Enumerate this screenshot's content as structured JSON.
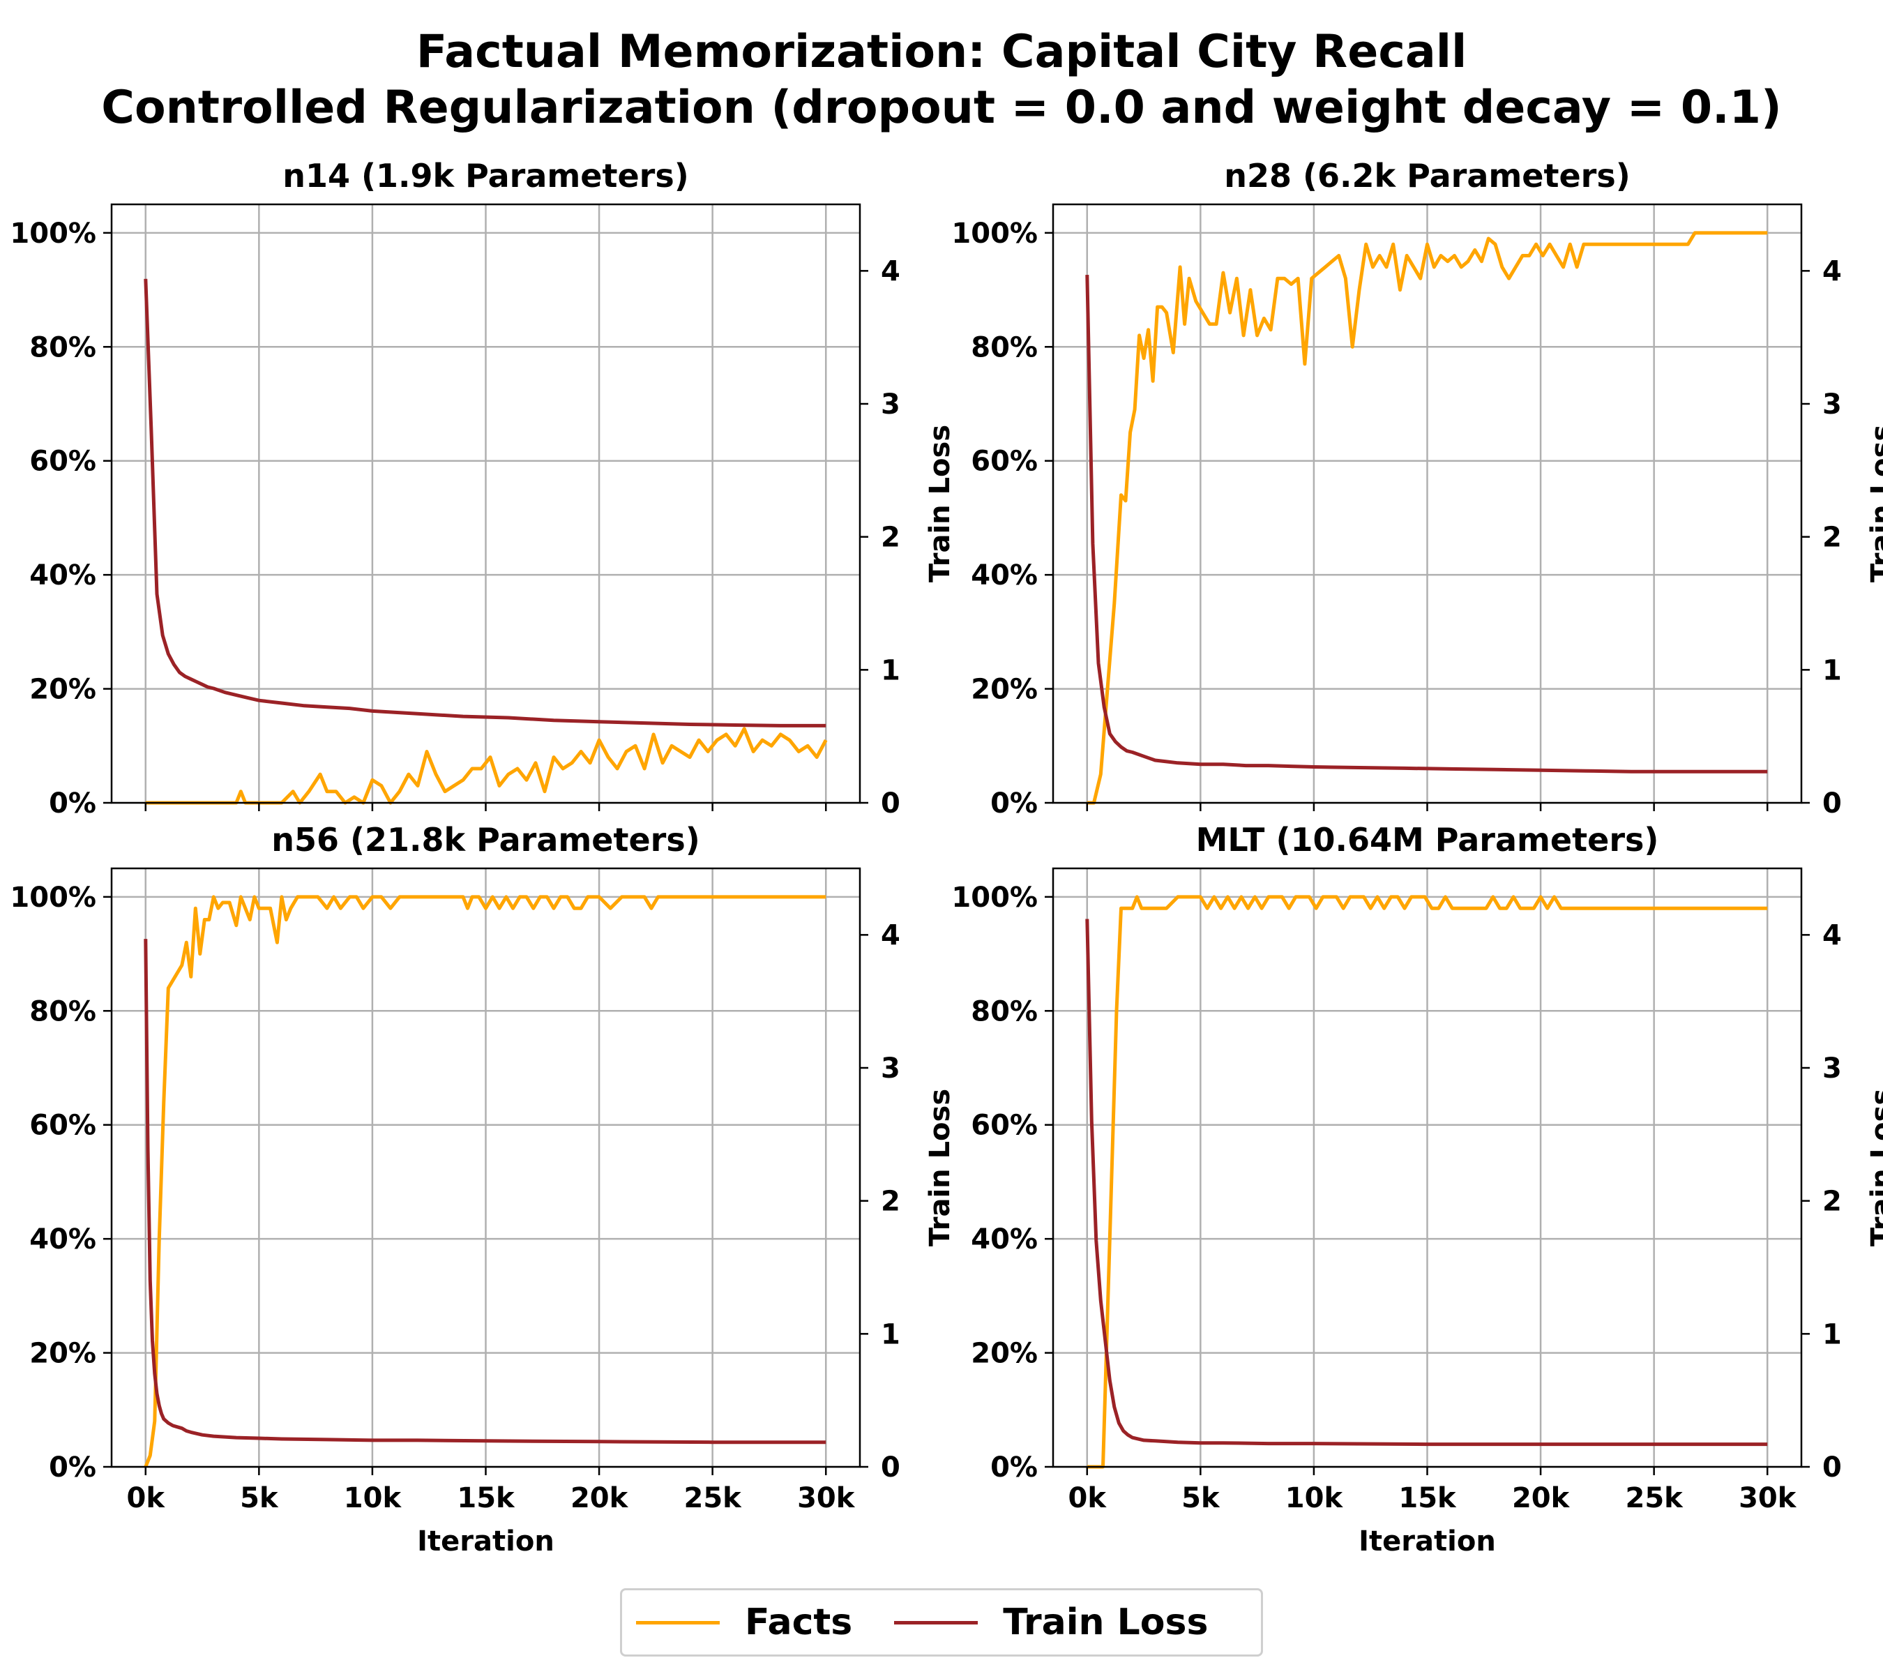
{
  "title_lines": [
    "Factual Memorization: Capital City Recall",
    "Controlled Regularization (dropout = 0.0 and weight decay = 0.1)"
  ],
  "colors": {
    "facts": "#FFA500",
    "loss": "#9B2226",
    "grid": "#b0b0b0"
  },
  "legend": {
    "facts_label": "Facts",
    "loss_label": "Train Loss"
  },
  "chart_data": [
    {
      "type": "line",
      "title": "n14 (1.9k Parameters)",
      "xlabel": "",
      "ylabel_left": "",
      "ylabel_right": "Train Loss",
      "xlim": [
        -1500,
        31500
      ],
      "ylim_left": [
        0,
        105
      ],
      "ylim_right": [
        0,
        4.5
      ],
      "x_ticks": [
        0,
        5000,
        10000,
        15000,
        20000,
        25000,
        30000
      ],
      "x_tick_labels": [],
      "y_left_ticks": [
        0,
        20,
        40,
        60,
        80,
        100
      ],
      "y_left_tick_labels": [
        "0%",
        "20%",
        "40%",
        "60%",
        "80%",
        "100%"
      ],
      "y_right_ticks": [
        0,
        1,
        2,
        3,
        4
      ],
      "y_right_tick_labels": [
        "0",
        "1",
        "2",
        "3",
        "4"
      ],
      "grid": true,
      "series": [
        {
          "name": "Facts",
          "axis": "left",
          "x": [
            0,
            2000,
            4000,
            4200,
            4400,
            6000,
            6500,
            6800,
            7200,
            7700,
            8000,
            8400,
            8800,
            9200,
            9600,
            10000,
            10400,
            10800,
            11200,
            11600,
            12000,
            12400,
            12800,
            13200,
            13600,
            14000,
            14400,
            14800,
            15200,
            15600,
            16000,
            16400,
            16800,
            17200,
            17600,
            18000,
            18400,
            18800,
            19200,
            19600,
            20000,
            20400,
            20800,
            21200,
            21600,
            22000,
            22400,
            22800,
            23200,
            23600,
            24000,
            24400,
            24800,
            25200,
            25600,
            26000,
            26400,
            26800,
            27200,
            27600,
            28000,
            28400,
            28800,
            29200,
            29600,
            30000
          ],
          "y": [
            0,
            0,
            0,
            2,
            0,
            0,
            2,
            0,
            2,
            5,
            2,
            2,
            0,
            1,
            0,
            4,
            3,
            0,
            2,
            5,
            3,
            9,
            5,
            2,
            3,
            4,
            6,
            6,
            8,
            3,
            5,
            6,
            4,
            7,
            2,
            8,
            6,
            7,
            9,
            7,
            11,
            8,
            6,
            9,
            10,
            6,
            12,
            7,
            10,
            9,
            8,
            11,
            9,
            11,
            12,
            10,
            13,
            9,
            11,
            10,
            12,
            11,
            9,
            10,
            8,
            11
          ]
        },
        {
          "name": "Train Loss",
          "axis": "right",
          "x": [
            0,
            250,
            500,
            750,
            1000,
            1250,
            1500,
            1750,
            2000,
            2250,
            2500,
            2750,
            3000,
            3500,
            4000,
            4500,
            5000,
            6000,
            7000,
            8000,
            9000,
            10000,
            12000,
            14000,
            16000,
            18000,
            20000,
            22000,
            24000,
            26000,
            28000,
            30000
          ],
          "y": [
            3.94,
            2.8,
            1.57,
            1.26,
            1.12,
            1.04,
            0.98,
            0.95,
            0.93,
            0.91,
            0.89,
            0.87,
            0.86,
            0.83,
            0.81,
            0.79,
            0.77,
            0.75,
            0.73,
            0.72,
            0.71,
            0.69,
            0.67,
            0.65,
            0.64,
            0.62,
            0.61,
            0.6,
            0.59,
            0.585,
            0.58,
            0.58
          ]
        }
      ]
    },
    {
      "type": "line",
      "title": "n28 (6.2k Parameters)",
      "xlabel": "",
      "ylabel_left": "",
      "ylabel_right": "Train Loss",
      "xlim": [
        -1500,
        31500
      ],
      "ylim_left": [
        0,
        105
      ],
      "ylim_right": [
        0,
        4.5
      ],
      "x_ticks": [
        0,
        5000,
        10000,
        15000,
        20000,
        25000,
        30000
      ],
      "x_tick_labels": [],
      "y_left_ticks": [
        0,
        20,
        40,
        60,
        80,
        100
      ],
      "y_left_tick_labels": [
        "0%",
        "20%",
        "40%",
        "60%",
        "80%",
        "100%"
      ],
      "y_right_ticks": [
        0,
        1,
        2,
        3,
        4
      ],
      "y_right_tick_labels": [
        "0",
        "1",
        "2",
        "3",
        "4"
      ],
      "grid": true,
      "series": [
        {
          "name": "Facts",
          "axis": "left",
          "x": [
            0,
            300,
            600,
            900,
            1200,
            1500,
            1700,
            1900,
            2100,
            2300,
            2500,
            2700,
            2900,
            3100,
            3300,
            3500,
            3800,
            4100,
            4300,
            4500,
            4800,
            5100,
            5400,
            5700,
            6000,
            6300,
            6600,
            6900,
            7200,
            7500,
            7800,
            8100,
            8400,
            8700,
            9000,
            9300,
            9600,
            9900,
            10200,
            10500,
            10800,
            11100,
            11400,
            11700,
            12000,
            12300,
            12600,
            12900,
            13200,
            13500,
            13800,
            14100,
            14400,
            14700,
            15000,
            15300,
            15600,
            15900,
            16200,
            16500,
            16800,
            17100,
            17400,
            17700,
            18000,
            18300,
            18600,
            18900,
            19200,
            19500,
            19800,
            20100,
            20400,
            20700,
            21000,
            21300,
            21600,
            21900,
            22200,
            26500,
            26800,
            30000
          ],
          "y": [
            0,
            0,
            5,
            20,
            35,
            54,
            53,
            65,
            69,
            82,
            78,
            83,
            74,
            87,
            87,
            86,
            79,
            94,
            84,
            92,
            88,
            86,
            84,
            84,
            93,
            86,
            92,
            82,
            90,
            82,
            85,
            83,
            92,
            92,
            91,
            92,
            77,
            92,
            93,
            94,
            95,
            96,
            92,
            80,
            90,
            98,
            94,
            96,
            94,
            98,
            90,
            96,
            94,
            92,
            98,
            94,
            96,
            95,
            96,
            94,
            95,
            97,
            95,
            99,
            98,
            94,
            92,
            94,
            96,
            96,
            98,
            96,
            98,
            96,
            94,
            98,
            94,
            98,
            98,
            98,
            100,
            100
          ]
        },
        {
          "name": "Train Loss",
          "axis": "right",
          "x": [
            0,
            250,
            500,
            750,
            1000,
            1250,
            1500,
            1750,
            2000,
            2500,
            3000,
            3500,
            4000,
            5000,
            6000,
            7000,
            8000,
            9000,
            10000,
            12000,
            14000,
            16000,
            18000,
            20000,
            22000,
            24000,
            26000,
            28000,
            30000
          ],
          "y": [
            3.97,
            1.95,
            1.05,
            0.72,
            0.52,
            0.46,
            0.42,
            0.39,
            0.38,
            0.35,
            0.32,
            0.31,
            0.3,
            0.29,
            0.29,
            0.28,
            0.28,
            0.275,
            0.27,
            0.265,
            0.26,
            0.255,
            0.25,
            0.245,
            0.24,
            0.235,
            0.235,
            0.235,
            0.235
          ]
        }
      ]
    },
    {
      "type": "line",
      "title": "n56 (21.8k Parameters)",
      "xlabel": "Iteration",
      "ylabel_left": "",
      "ylabel_right": "Train Loss",
      "xlim": [
        -1500,
        31500
      ],
      "ylim_left": [
        0,
        105
      ],
      "ylim_right": [
        0,
        4.5
      ],
      "x_ticks": [
        0,
        5000,
        10000,
        15000,
        20000,
        25000,
        30000
      ],
      "x_tick_labels": [
        "0k",
        "5k",
        "10k",
        "15k",
        "20k",
        "25k",
        "30k"
      ],
      "y_left_ticks": [
        0,
        20,
        40,
        60,
        80,
        100
      ],
      "y_left_tick_labels": [
        "0%",
        "20%",
        "40%",
        "60%",
        "80%",
        "100%"
      ],
      "y_right_ticks": [
        0,
        1,
        2,
        3,
        4
      ],
      "y_right_tick_labels": [
        "0",
        "1",
        "2",
        "3",
        "4"
      ],
      "grid": true,
      "series": [
        {
          "name": "Facts",
          "axis": "left",
          "x": [
            0,
            200,
            400,
            600,
            800,
            1000,
            1300,
            1600,
            1800,
            2000,
            2200,
            2400,
            2600,
            2800,
            3000,
            3200,
            3400,
            3700,
            4000,
            4200,
            4400,
            4600,
            4800,
            5000,
            5200,
            5500,
            5800,
            6000,
            6200,
            6400,
            6700,
            7000,
            7300,
            7600,
            8000,
            8300,
            8600,
            9000,
            9300,
            9600,
            10000,
            10400,
            10800,
            11200,
            12000,
            14000,
            14200,
            14400,
            14700,
            15000,
            15300,
            15600,
            15900,
            16200,
            16500,
            16800,
            17100,
            17400,
            17700,
            18000,
            18300,
            18600,
            18900,
            19200,
            19500,
            20000,
            20500,
            21000,
            21500,
            22000,
            22300,
            22600,
            25000,
            30000
          ],
          "y": [
            0,
            2,
            8,
            40,
            64,
            84,
            86,
            88,
            92,
            86,
            98,
            90,
            96,
            96,
            100,
            98,
            99,
            99,
            95,
            100,
            98,
            96,
            100,
            98,
            98,
            98,
            92,
            100,
            96,
            98,
            100,
            100,
            100,
            100,
            98,
            100,
            98,
            100,
            100,
            98,
            100,
            100,
            98,
            100,
            100,
            100,
            98,
            100,
            100,
            98,
            100,
            98,
            100,
            98,
            100,
            100,
            98,
            100,
            100,
            98,
            100,
            100,
            98,
            98,
            100,
            100,
            98,
            100,
            100,
            100,
            98,
            100,
            100,
            100
          ]
        },
        {
          "name": "Train Loss",
          "axis": "right",
          "x": [
            0,
            100,
            200,
            300,
            400,
            500,
            600,
            700,
            800,
            1000,
            1200,
            1400,
            1600,
            1800,
            2000,
            2500,
            3000,
            4000,
            5000,
            6000,
            8000,
            10000,
            12000,
            15000,
            20000,
            25000,
            30000
          ],
          "y": [
            3.97,
            2.4,
            1.4,
            0.95,
            0.7,
            0.55,
            0.46,
            0.4,
            0.36,
            0.33,
            0.31,
            0.3,
            0.29,
            0.27,
            0.26,
            0.24,
            0.23,
            0.22,
            0.215,
            0.21,
            0.205,
            0.2,
            0.2,
            0.195,
            0.19,
            0.185,
            0.185
          ]
        }
      ]
    },
    {
      "type": "line",
      "title": "MLT (10.64M Parameters)",
      "xlabel": "Iteration",
      "ylabel_left": "",
      "ylabel_right": "Train Loss",
      "xlim": [
        -1500,
        31500
      ],
      "ylim_left": [
        0,
        105
      ],
      "ylim_right": [
        0,
        4.5
      ],
      "x_ticks": [
        0,
        5000,
        10000,
        15000,
        20000,
        25000,
        30000
      ],
      "x_tick_labels": [
        "0k",
        "5k",
        "10k",
        "15k",
        "20k",
        "25k",
        "30k"
      ],
      "y_left_ticks": [
        0,
        20,
        40,
        60,
        80,
        100
      ],
      "y_left_tick_labels": [
        "0%",
        "20%",
        "40%",
        "60%",
        "80%",
        "100%"
      ],
      "y_right_ticks": [
        0,
        1,
        2,
        3,
        4
      ],
      "y_right_tick_labels": [
        "0",
        "1",
        "2",
        "3",
        "4"
      ],
      "grid": true,
      "series": [
        {
          "name": "Facts",
          "axis": "left",
          "x": [
            0,
            700,
            1000,
            1300,
            1500,
            2000,
            2200,
            2400,
            2600,
            3000,
            3500,
            4000,
            4500,
            5000,
            5300,
            5600,
            5900,
            6200,
            6500,
            6800,
            7100,
            7400,
            7700,
            8000,
            8300,
            8600,
            8900,
            9200,
            9500,
            9800,
            10100,
            10400,
            10700,
            11000,
            11300,
            11600,
            11900,
            12200,
            12500,
            12800,
            13100,
            13400,
            13700,
            14000,
            14300,
            14600,
            14900,
            15200,
            15500,
            15800,
            16100,
            16400,
            16700,
            17000,
            17300,
            17600,
            17900,
            18200,
            18500,
            18800,
            19100,
            19400,
            19700,
            20000,
            20300,
            20600,
            20900,
            21200,
            21500,
            30000
          ],
          "y": [
            0,
            0,
            40,
            80,
            98,
            98,
            100,
            98,
            98,
            98,
            98,
            100,
            100,
            100,
            98,
            100,
            98,
            100,
            98,
            100,
            98,
            100,
            98,
            100,
            100,
            100,
            98,
            100,
            100,
            100,
            98,
            100,
            100,
            100,
            98,
            100,
            100,
            100,
            98,
            100,
            98,
            100,
            100,
            98,
            100,
            100,
            100,
            98,
            98,
            100,
            98,
            98,
            98,
            98,
            98,
            98,
            100,
            98,
            98,
            100,
            98,
            98,
            98,
            100,
            98,
            100,
            98,
            98,
            98,
            98
          ]
        },
        {
          "name": "Train Loss",
          "axis": "right",
          "x": [
            0,
            200,
            400,
            600,
            800,
            1000,
            1200,
            1400,
            1600,
            1800,
            2000,
            2500,
            3000,
            3500,
            4000,
            5000,
            6000,
            8000,
            10000,
            15000,
            20000,
            25000,
            30000
          ],
          "y": [
            4.12,
            2.6,
            1.7,
            1.25,
            0.95,
            0.65,
            0.45,
            0.33,
            0.27,
            0.24,
            0.22,
            0.2,
            0.195,
            0.19,
            0.185,
            0.18,
            0.18,
            0.175,
            0.175,
            0.17,
            0.17,
            0.17,
            0.17
          ]
        }
      ]
    }
  ]
}
